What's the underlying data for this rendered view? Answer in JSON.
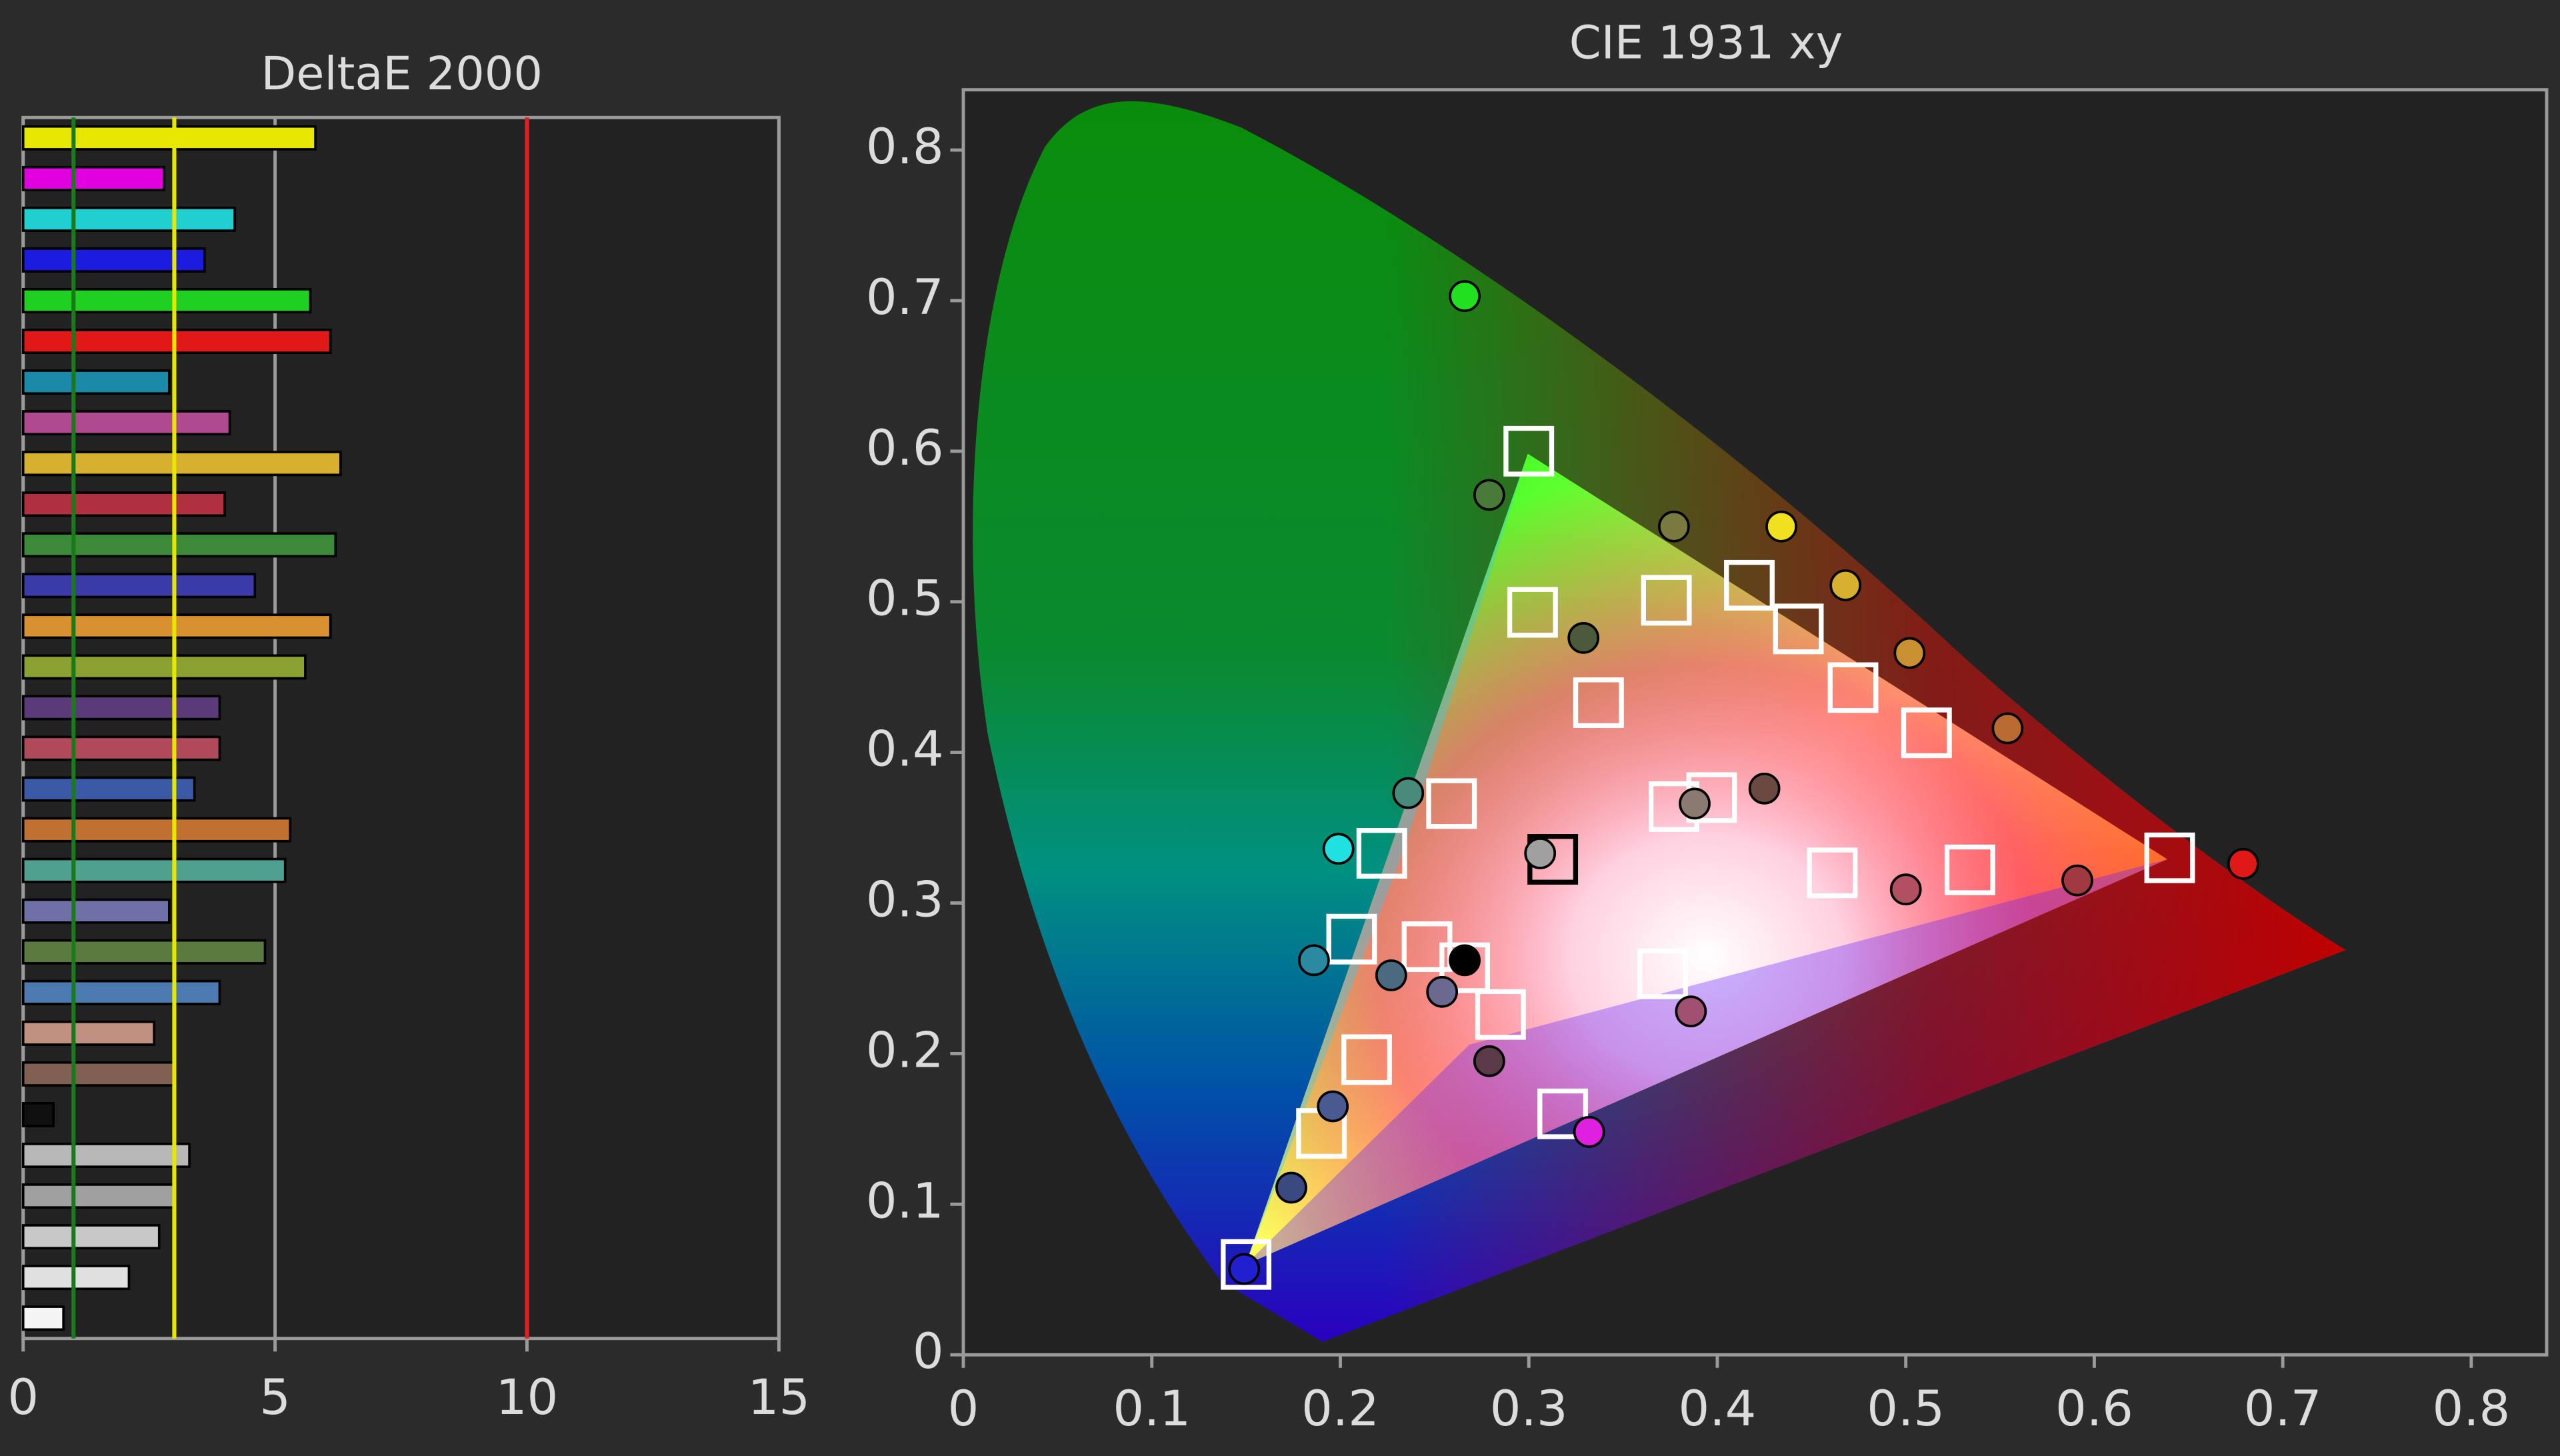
{
  "chart_data": [
    {
      "type": "hbar",
      "title": "DeltaE 2000",
      "values": [
        5.8,
        2.8,
        4.2,
        3.6,
        5.7,
        6.1,
        2.9,
        4.1,
        6.3,
        4.0,
        6.2,
        4.6,
        6.1,
        5.6,
        3.9,
        3.9,
        3.4,
        5.3,
        5.2,
        2.9,
        4.8,
        3.9,
        2.6,
        3.0,
        0.6,
        3.3,
        3.0,
        2.7,
        2.1,
        0.8
      ],
      "colors": [
        "#e6e600",
        "#e000e0",
        "#20d0d0",
        "#1c1ce0",
        "#20d020",
        "#e01818",
        "#1a8aa8",
        "#b04a90",
        "#d8b030",
        "#b03040",
        "#3a8a3a",
        "#3a3aa8",
        "#d89030",
        "#8aa030",
        "#5a3a78",
        "#b04a5a",
        "#3a5aa8",
        "#c07030",
        "#50a090",
        "#7070a8",
        "#5a7a40",
        "#4a7ab0",
        "#c09080",
        "#806050",
        "#101010",
        "#b8b8b8",
        "#a0a0a0",
        "#c8c8c8",
        "#e0e0e0",
        "#f4f4f4"
      ],
      "xlim": [
        0,
        15
      ],
      "xticks": [
        0,
        5,
        10,
        15
      ],
      "grid": true,
      "reference_lines": [
        {
          "value": 1,
          "color": "#1a7a1a"
        },
        {
          "value": 3,
          "color": "#e6e600"
        },
        {
          "value": 10,
          "color": "#e02020"
        }
      ]
    },
    {
      "type": "scatter",
      "title": "CIE 1931 xy",
      "xlim": [
        0,
        0.84
      ],
      "ylim": [
        0,
        0.84
      ],
      "xticks": [
        0,
        0.1,
        0.2,
        0.3,
        0.4,
        0.5,
        0.6,
        0.7,
        0.8
      ],
      "yticks": [
        0,
        0.1,
        0.2,
        0.3,
        0.4,
        0.5,
        0.6,
        0.7,
        0.8
      ],
      "series": [
        {
          "marker": "square",
          "color": "#ffffff",
          "x": [
            0.3,
            0.64,
            0.15,
            0.3127,
            0.417,
            0.443,
            0.472,
            0.511,
            0.373,
            0.302,
            0.337,
            0.259,
            0.222,
            0.206,
            0.246,
            0.266,
            0.285,
            0.214,
            0.19,
            0.318,
            0.371,
            0.377,
            0.397,
            0.461,
            0.534
          ],
          "y": [
            0.6,
            0.33,
            0.06,
            0.329,
            0.511,
            0.482,
            0.443,
            0.413,
            0.501,
            0.493,
            0.433,
            0.366,
            0.333,
            0.276,
            0.271,
            0.257,
            0.226,
            0.196,
            0.147,
            0.16,
            0.253,
            0.364,
            0.37,
            0.32,
            0.322
          ]
        },
        {
          "marker": "circle",
          "x": [
            0.266,
            0.279,
            0.329,
            0.377,
            0.434,
            0.468,
            0.502,
            0.554,
            0.425,
            0.388,
            0.306,
            0.236,
            0.199,
            0.186,
            0.227,
            0.254,
            0.266,
            0.279,
            0.196,
            0.174,
            0.149,
            0.332,
            0.386,
            0.5,
            0.591,
            0.679
          ],
          "y": [
            0.703,
            0.571,
            0.476,
            0.55,
            0.55,
            0.511,
            0.466,
            0.416,
            0.376,
            0.366,
            0.333,
            0.373,
            0.336,
            0.262,
            0.252,
            0.241,
            0.262,
            0.195,
            0.165,
            0.111,
            0.057,
            0.148,
            0.228,
            0.309,
            0.315,
            0.326
          ],
          "colors": [
            "#20e020",
            "#4a7a3a",
            "#4a5a3a",
            "#7a7a40",
            "#f0e020",
            "#d8b030",
            "#c89030",
            "#b86a30",
            "#6a4a40",
            "#8a7a70",
            "#a0a0a0",
            "#4a8a7a",
            "#20e0e0",
            "#2a8aa0",
            "#4a6a80",
            "#6a6a90",
            "#000000",
            "#5a3a48",
            "#4a5a90",
            "#3a4a80",
            "#2020d0",
            "#e020e0",
            "#a05070",
            "#b05060",
            "#a03a40",
            "#e01818"
          ]
        }
      ]
    }
  ]
}
